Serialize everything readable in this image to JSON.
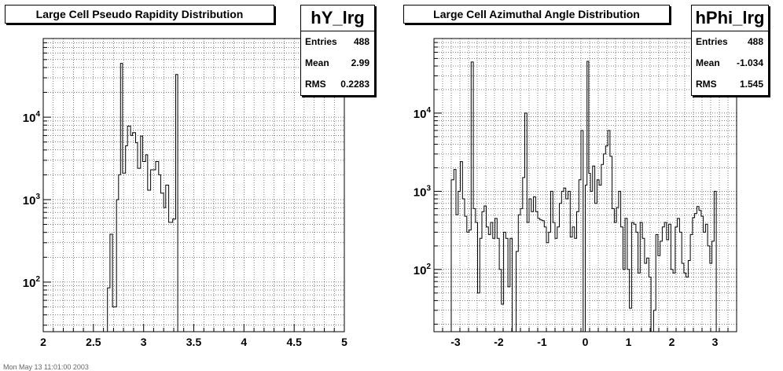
{
  "chart_data": [
    {
      "type": "histogram",
      "title": "Large Cell Pseudo Rapidity Distribution",
      "stats": {
        "name": "hY_lrg",
        "rows": [
          {
            "label": "Entries",
            "value": "488"
          },
          {
            "label": "Mean",
            "value": "2.99"
          },
          {
            "label": "RMS",
            "value": "0.2283"
          }
        ]
      },
      "xlim": [
        2,
        5
      ],
      "ylim": [
        25,
        90000
      ],
      "yscale": "log",
      "x_ticks": [
        {
          "v": 2,
          "label": "2"
        },
        {
          "v": 2.5,
          "label": "2.5"
        },
        {
          "v": 3,
          "label": "3"
        },
        {
          "v": 3.5,
          "label": "3.5"
        },
        {
          "v": 4,
          "label": "4"
        },
        {
          "v": 4.5,
          "label": "4.5"
        },
        {
          "v": 5,
          "label": "5"
        }
      ],
      "y_ticks": [
        {
          "v": 100,
          "base": "10",
          "exp": "2"
        },
        {
          "v": 1000,
          "base": "10",
          "exp": "3"
        },
        {
          "v": 10000,
          "base": "10",
          "exp": "4"
        }
      ],
      "grid": true,
      "steps": [
        [
          2.64,
          25
        ],
        [
          2.64,
          85
        ],
        [
          2.665,
          85
        ],
        [
          2.665,
          380
        ],
        [
          2.69,
          380
        ],
        [
          2.69,
          50
        ],
        [
          2.73,
          50
        ],
        [
          2.73,
          1000
        ],
        [
          2.75,
          1000
        ],
        [
          2.75,
          2000
        ],
        [
          2.77,
          2000
        ],
        [
          2.77,
          45000
        ],
        [
          2.79,
          45000
        ],
        [
          2.79,
          2100
        ],
        [
          2.82,
          2100
        ],
        [
          2.82,
          4500
        ],
        [
          2.84,
          4500
        ],
        [
          2.84,
          7800
        ],
        [
          2.87,
          7800
        ],
        [
          2.87,
          6000
        ],
        [
          2.89,
          6000
        ],
        [
          2.89,
          6500
        ],
        [
          2.92,
          6500
        ],
        [
          2.92,
          4900
        ],
        [
          2.94,
          4900
        ],
        [
          2.94,
          2400
        ],
        [
          2.97,
          2400
        ],
        [
          2.97,
          5900
        ],
        [
          2.99,
          5900
        ],
        [
          2.99,
          2900
        ],
        [
          3.02,
          2900
        ],
        [
          3.02,
          3500
        ],
        [
          3.04,
          3500
        ],
        [
          3.04,
          1300
        ],
        [
          3.07,
          1300
        ],
        [
          3.07,
          2300
        ],
        [
          3.12,
          2300
        ],
        [
          3.12,
          2900
        ],
        [
          3.15,
          2900
        ],
        [
          3.15,
          2000
        ],
        [
          3.17,
          2000
        ],
        [
          3.17,
          1200
        ],
        [
          3.2,
          1200
        ],
        [
          3.2,
          800
        ],
        [
          3.22,
          800
        ],
        [
          3.22,
          1500
        ],
        [
          3.25,
          1500
        ],
        [
          3.25,
          530
        ],
        [
          3.29,
          530
        ],
        [
          3.29,
          580
        ],
        [
          3.32,
          580
        ],
        [
          3.32,
          33000
        ],
        [
          3.34,
          33000
        ],
        [
          3.34,
          25
        ]
      ]
    },
    {
      "type": "histogram",
      "title": "Large Cell Azimuthal Angle Distribution",
      "stats": {
        "name": "hPhi_lrg",
        "rows": [
          {
            "label": "Entries",
            "value": "488"
          },
          {
            "label": "Mean",
            "value": "-1.034"
          },
          {
            "label": "RMS",
            "value": "1.545"
          }
        ]
      },
      "xlim": [
        -3.5,
        3.5
      ],
      "ylim": [
        16,
        90000
      ],
      "yscale": "log",
      "x_ticks": [
        {
          "v": -3,
          "label": "-3"
        },
        {
          "v": -2,
          "label": "-2"
        },
        {
          "v": -1,
          "label": "-1"
        },
        {
          "v": 0,
          "label": "0"
        },
        {
          "v": 1,
          "label": "1"
        },
        {
          "v": 2,
          "label": "2"
        },
        {
          "v": 3,
          "label": "3"
        }
      ],
      "y_ticks": [
        {
          "v": 100,
          "base": "10",
          "exp": "2"
        },
        {
          "v": 1000,
          "base": "10",
          "exp": "3"
        },
        {
          "v": 10000,
          "base": "10",
          "exp": "4"
        }
      ],
      "grid": true,
      "steps": [
        [
          -3.1,
          16
        ],
        [
          -3.1,
          1400
        ],
        [
          -3.04,
          1400
        ],
        [
          -3.04,
          1900
        ],
        [
          -2.99,
          1900
        ],
        [
          -2.99,
          500
        ],
        [
          -2.94,
          500
        ],
        [
          -2.94,
          1000
        ],
        [
          -2.89,
          1000
        ],
        [
          -2.89,
          2400
        ],
        [
          -2.84,
          2400
        ],
        [
          -2.84,
          800
        ],
        [
          -2.79,
          800
        ],
        [
          -2.79,
          480
        ],
        [
          -2.74,
          480
        ],
        [
          -2.74,
          300
        ],
        [
          -2.69,
          300
        ],
        [
          -2.69,
          320
        ],
        [
          -2.64,
          320
        ],
        [
          -2.64,
          45000
        ],
        [
          -2.59,
          45000
        ],
        [
          -2.59,
          600
        ],
        [
          -2.54,
          600
        ],
        [
          -2.54,
          400
        ],
        [
          -2.49,
          400
        ],
        [
          -2.49,
          50
        ],
        [
          -2.44,
          50
        ],
        [
          -2.44,
          250
        ],
        [
          -2.39,
          250
        ],
        [
          -2.39,
          550
        ],
        [
          -2.34,
          550
        ],
        [
          -2.34,
          650
        ],
        [
          -2.29,
          650
        ],
        [
          -2.29,
          350
        ],
        [
          -2.24,
          350
        ],
        [
          -2.24,
          280
        ],
        [
          -2.19,
          280
        ],
        [
          -2.19,
          400
        ],
        [
          -2.14,
          400
        ],
        [
          -2.14,
          250
        ],
        [
          -2.09,
          250
        ],
        [
          -2.09,
          450
        ],
        [
          -2.04,
          450
        ],
        [
          -2.04,
          250
        ],
        [
          -1.99,
          250
        ],
        [
          -1.99,
          100
        ],
        [
          -1.94,
          100
        ],
        [
          -1.94,
          36
        ],
        [
          -1.89,
          36
        ],
        [
          -1.89,
          300
        ],
        [
          -1.84,
          300
        ],
        [
          -1.84,
          250
        ],
        [
          -1.79,
          250
        ],
        [
          -1.79,
          60
        ],
        [
          -1.74,
          60
        ],
        [
          -1.74,
          250
        ],
        [
          -1.69,
          250
        ],
        [
          -1.69,
          16
        ],
        [
          -1.6,
          16
        ],
        [
          -1.6,
          170
        ],
        [
          -1.55,
          170
        ],
        [
          -1.55,
          500
        ],
        [
          -1.5,
          500
        ],
        [
          -1.5,
          600
        ],
        [
          -1.45,
          600
        ],
        [
          -1.45,
          1500
        ],
        [
          -1.4,
          1500
        ],
        [
          -1.4,
          10000
        ],
        [
          -1.35,
          10000
        ],
        [
          -1.35,
          400
        ],
        [
          -1.3,
          400
        ],
        [
          -1.3,
          800
        ],
        [
          -1.25,
          800
        ],
        [
          -1.25,
          550
        ],
        [
          -1.2,
          550
        ],
        [
          -1.2,
          850
        ],
        [
          -1.15,
          850
        ],
        [
          -1.15,
          550
        ],
        [
          -1.1,
          550
        ],
        [
          -1.1,
          450
        ],
        [
          -1.05,
          450
        ],
        [
          -1.05,
          430
        ],
        [
          -1.0,
          430
        ],
        [
          -1.0,
          420
        ],
        [
          -0.95,
          420
        ],
        [
          -0.95,
          350
        ],
        [
          -0.9,
          350
        ],
        [
          -0.9,
          220
        ],
        [
          -0.85,
          220
        ],
        [
          -0.85,
          300
        ],
        [
          -0.8,
          300
        ],
        [
          -0.8,
          1000
        ],
        [
          -0.75,
          1000
        ],
        [
          -0.75,
          400
        ],
        [
          -0.7,
          400
        ],
        [
          -0.7,
          250
        ],
        [
          -0.65,
          250
        ],
        [
          -0.65,
          350
        ],
        [
          -0.6,
          350
        ],
        [
          -0.6,
          700
        ],
        [
          -0.55,
          700
        ],
        [
          -0.55,
          1000
        ],
        [
          -0.5,
          1000
        ],
        [
          -0.5,
          1100
        ],
        [
          -0.45,
          1100
        ],
        [
          -0.45,
          800
        ],
        [
          -0.4,
          800
        ],
        [
          -0.4,
          1000
        ],
        [
          -0.35,
          1000
        ],
        [
          -0.35,
          260
        ],
        [
          -0.3,
          260
        ],
        [
          -0.3,
          350
        ],
        [
          -0.25,
          350
        ],
        [
          -0.25,
          250
        ],
        [
          -0.2,
          250
        ],
        [
          -0.2,
          550
        ],
        [
          -0.15,
          550
        ],
        [
          -0.15,
          1400
        ],
        [
          -0.1,
          1400
        ],
        [
          -0.1,
          6000
        ],
        [
          -0.05,
          6000
        ],
        [
          -0.05,
          16
        ],
        [
          0.0,
          16
        ],
        [
          0.0,
          1200
        ],
        [
          0.04,
          1200
        ],
        [
          0.04,
          46000
        ],
        [
          0.08,
          46000
        ],
        [
          0.08,
          1700
        ],
        [
          0.12,
          1700
        ],
        [
          0.12,
          1000
        ],
        [
          0.17,
          1000
        ],
        [
          0.17,
          2100
        ],
        [
          0.22,
          2100
        ],
        [
          0.22,
          700
        ],
        [
          0.27,
          700
        ],
        [
          0.27,
          1400
        ],
        [
          0.32,
          1400
        ],
        [
          0.32,
          1200
        ],
        [
          0.37,
          1200
        ],
        [
          0.37,
          2200
        ],
        [
          0.42,
          2200
        ],
        [
          0.42,
          3000
        ],
        [
          0.47,
          3000
        ],
        [
          0.47,
          3800
        ],
        [
          0.52,
          3800
        ],
        [
          0.52,
          6000
        ],
        [
          0.57,
          6000
        ],
        [
          0.57,
          2800
        ],
        [
          0.62,
          2800
        ],
        [
          0.62,
          600
        ],
        [
          0.67,
          600
        ],
        [
          0.67,
          400
        ],
        [
          0.72,
          400
        ],
        [
          0.72,
          620
        ],
        [
          0.77,
          620
        ],
        [
          0.77,
          1000
        ],
        [
          0.82,
          1000
        ],
        [
          0.82,
          350
        ],
        [
          0.87,
          350
        ],
        [
          0.87,
          100
        ],
        [
          0.92,
          100
        ],
        [
          0.92,
          450
        ],
        [
          0.97,
          450
        ],
        [
          0.97,
          100
        ],
        [
          1.02,
          100
        ],
        [
          1.02,
          32
        ],
        [
          1.07,
          32
        ],
        [
          1.07,
          400
        ],
        [
          1.12,
          400
        ],
        [
          1.12,
          380
        ],
        [
          1.17,
          380
        ],
        [
          1.17,
          300
        ],
        [
          1.22,
          300
        ],
        [
          1.22,
          90
        ],
        [
          1.27,
          90
        ],
        [
          1.27,
          400
        ],
        [
          1.32,
          400
        ],
        [
          1.32,
          250
        ],
        [
          1.37,
          250
        ],
        [
          1.37,
          120
        ],
        [
          1.42,
          120
        ],
        [
          1.42,
          140
        ],
        [
          1.47,
          140
        ],
        [
          1.47,
          80
        ],
        [
          1.52,
          80
        ],
        [
          1.52,
          16
        ],
        [
          1.58,
          16
        ],
        [
          1.58,
          30
        ],
        [
          1.63,
          30
        ],
        [
          1.63,
          280
        ],
        [
          1.68,
          280
        ],
        [
          1.68,
          150
        ],
        [
          1.73,
          150
        ],
        [
          1.73,
          230
        ],
        [
          1.78,
          230
        ],
        [
          1.78,
          350
        ],
        [
          1.83,
          350
        ],
        [
          1.83,
          400
        ],
        [
          1.88,
          400
        ],
        [
          1.88,
          240
        ],
        [
          1.93,
          240
        ],
        [
          1.93,
          380
        ],
        [
          1.98,
          380
        ],
        [
          1.98,
          100
        ],
        [
          2.03,
          100
        ],
        [
          2.03,
          90
        ],
        [
          2.08,
          90
        ],
        [
          2.08,
          350
        ],
        [
          2.13,
          350
        ],
        [
          2.13,
          450
        ],
        [
          2.18,
          450
        ],
        [
          2.18,
          300
        ],
        [
          2.23,
          300
        ],
        [
          2.23,
          120
        ],
        [
          2.28,
          120
        ],
        [
          2.28,
          90
        ],
        [
          2.33,
          90
        ],
        [
          2.33,
          80
        ],
        [
          2.38,
          80
        ],
        [
          2.38,
          130
        ],
        [
          2.43,
          130
        ],
        [
          2.43,
          280
        ],
        [
          2.48,
          280
        ],
        [
          2.48,
          460
        ],
        [
          2.53,
          460
        ],
        [
          2.53,
          520
        ],
        [
          2.58,
          520
        ],
        [
          2.58,
          640
        ],
        [
          2.63,
          640
        ],
        [
          2.63,
          570
        ],
        [
          2.68,
          570
        ],
        [
          2.68,
          480
        ],
        [
          2.73,
          480
        ],
        [
          2.73,
          300
        ],
        [
          2.78,
          300
        ],
        [
          2.78,
          380
        ],
        [
          2.83,
          380
        ],
        [
          2.83,
          200
        ],
        [
          2.88,
          200
        ],
        [
          2.88,
          120
        ],
        [
          2.93,
          120
        ],
        [
          2.93,
          230
        ],
        [
          2.98,
          230
        ],
        [
          2.98,
          1000
        ],
        [
          3.03,
          1000
        ],
        [
          3.03,
          16
        ]
      ]
    }
  ],
  "footer_text": "Mon May 13 11:01:00 2003"
}
